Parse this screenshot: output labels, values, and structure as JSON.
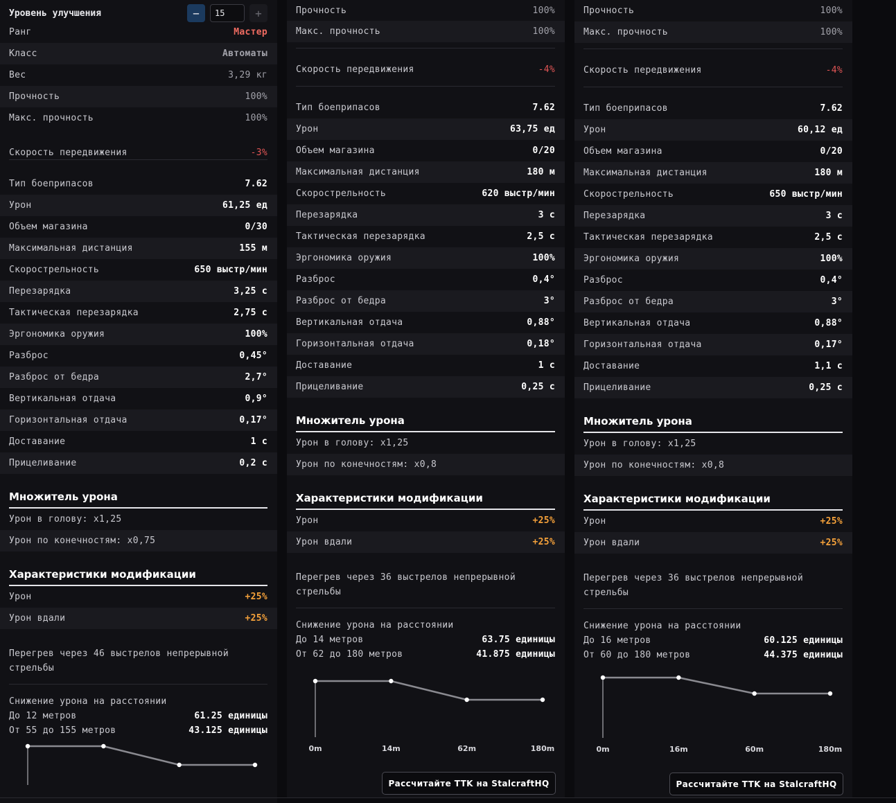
{
  "upgrade": {
    "label": "Уровень улучшения",
    "value": "15",
    "minus": "−",
    "plus": "+"
  },
  "rank": {
    "label": "Ранг",
    "value": "Мастер"
  },
  "klass": {
    "label": "Класс",
    "value": "Автоматы"
  },
  "weight": {
    "label": "Вес",
    "value": "3,29 кг"
  },
  "col1": {
    "durability": {
      "label": "Прочность",
      "value": "100%"
    },
    "max_durability": {
      "label": "Макс. прочность",
      "value": "100%"
    },
    "move_speed": {
      "label": "Скорость передвижения",
      "value": "-3%"
    },
    "stats": [
      {
        "label": "Тип боеприпасов",
        "value": "7.62"
      },
      {
        "label": "Урон",
        "value": "61,25 ед"
      },
      {
        "label": "Объем магазина",
        "value": "0/30"
      },
      {
        "label": "Максимальная дистанция",
        "value": "155 м"
      },
      {
        "label": "Скорострельность",
        "value": "650 выстр/мин"
      },
      {
        "label": "Перезарядка",
        "value": "3,25 с"
      },
      {
        "label": "Тактическая перезарядка",
        "value": "2,75 с"
      },
      {
        "label": "Эргономика оружия",
        "value": "100%"
      },
      {
        "label": "Разброс",
        "value": "0,45°"
      },
      {
        "label": "Разброс от бедра",
        "value": "2,7°"
      },
      {
        "label": "Вертикальная отдача",
        "value": "0,9°"
      },
      {
        "label": "Горизонтальная отдача",
        "value": "0,17°"
      },
      {
        "label": "Доставание",
        "value": "1 с"
      },
      {
        "label": "Прицеливание",
        "value": "0,2 с"
      }
    ],
    "multiplier_title": "Множитель урона",
    "head": "Урон в голову: x1,25",
    "limbs": "Урон по конечностям: x0,75",
    "mod_title": "Характеристики модификации",
    "mod": [
      {
        "label": "Урон",
        "value": "+25%"
      },
      {
        "label": "Урон вдали",
        "value": "+25%"
      }
    ],
    "overheat_1": "Перегрев через 46 выстрелов непрерывной",
    "overheat_2": "стрельбы",
    "falloff_title": "Снижение урона на расстоянии",
    "falloff": [
      {
        "label": "До 12 метров",
        "value": "61.25 единицы"
      },
      {
        "label": "От 55 до 155 метров",
        "value": "43.125 единицы"
      }
    ]
  },
  "col2": {
    "durability": {
      "label": "Прочность",
      "value": "100%"
    },
    "max_durability": {
      "label": "Макс. прочность",
      "value": "100%"
    },
    "move_speed": {
      "label": "Скорость передвижения",
      "value": "-4%"
    },
    "stats": [
      {
        "label": "Тип боеприпасов",
        "value": "7.62"
      },
      {
        "label": "Урон",
        "value": "63,75 ед"
      },
      {
        "label": "Объем магазина",
        "value": "0/20"
      },
      {
        "label": "Максимальная дистанция",
        "value": "180 м"
      },
      {
        "label": "Скорострельность",
        "value": "620 выстр/мин"
      },
      {
        "label": "Перезарядка",
        "value": "3 с"
      },
      {
        "label": "Тактическая перезарядка",
        "value": "2,5 с"
      },
      {
        "label": "Эргономика оружия",
        "value": "100%"
      },
      {
        "label": "Разброс",
        "value": "0,4°"
      },
      {
        "label": "Разброс от бедра",
        "value": "3°"
      },
      {
        "label": "Вертикальная отдача",
        "value": "0,88°"
      },
      {
        "label": "Горизонтальная отдача",
        "value": "0,18°"
      },
      {
        "label": "Доставание",
        "value": "1 с"
      },
      {
        "label": "Прицеливание",
        "value": "0,25 с"
      }
    ],
    "multiplier_title": "Множитель урона",
    "head": "Урон в голову: x1,25",
    "limbs": "Урон по конечностям: x0,8",
    "mod_title": "Характеристики модификации",
    "mod": [
      {
        "label": "Урон",
        "value": "+25%"
      },
      {
        "label": "Урон вдали",
        "value": "+25%"
      }
    ],
    "overheat_1": "Перегрев через 36 выстрелов непрерывной",
    "overheat_2": "стрельбы",
    "falloff_title": "Снижение урона на расстоянии",
    "falloff": [
      {
        "label": "До 14 метров",
        "value": "63.75 единицы"
      },
      {
        "label": "От 62 до 180 метров",
        "value": "41.875 единицы"
      }
    ],
    "ttk_button": "Рассчитайте TTK на StalcraftHQ"
  },
  "col3": {
    "durability": {
      "label": "Прочность",
      "value": "100%"
    },
    "max_durability": {
      "label": "Макс. прочность",
      "value": "100%"
    },
    "move_speed": {
      "label": "Скорость передвижения",
      "value": "-4%"
    },
    "stats": [
      {
        "label": "Тип боеприпасов",
        "value": "7.62"
      },
      {
        "label": "Урон",
        "value": "60,12 ед"
      },
      {
        "label": "Объем магазина",
        "value": "0/20"
      },
      {
        "label": "Максимальная дистанция",
        "value": "180 м"
      },
      {
        "label": "Скорострельность",
        "value": "650 выстр/мин"
      },
      {
        "label": "Перезарядка",
        "value": "3 с"
      },
      {
        "label": "Тактическая перезарядка",
        "value": "2,5 с"
      },
      {
        "label": "Эргономика оружия",
        "value": "100%"
      },
      {
        "label": "Разброс",
        "value": "0,4°"
      },
      {
        "label": "Разброс от бедра",
        "value": "3°"
      },
      {
        "label": "Вертикальная отдача",
        "value": "0,88°"
      },
      {
        "label": "Горизонтальная отдача",
        "value": "0,17°"
      },
      {
        "label": "Доставание",
        "value": "1,1 с"
      },
      {
        "label": "Прицеливание",
        "value": "0,25 с"
      }
    ],
    "multiplier_title": "Множитель урона",
    "head": "Урон в голову: x1,25",
    "limbs": "Урон по конечностям: x0,8",
    "mod_title": "Характеристики модификации",
    "mod": [
      {
        "label": "Урон",
        "value": "+25%"
      },
      {
        "label": "Урон вдали",
        "value": "+25%"
      }
    ],
    "overheat_1": "Перегрев через 36 выстрелов непрерывной",
    "overheat_2": "стрельбы",
    "falloff_title": "Снижение урона на расстоянии",
    "falloff": [
      {
        "label": "До 16 метров",
        "value": "60.125 единицы"
      },
      {
        "label": "От 60 до 180 метров",
        "value": "44.375 единицы"
      }
    ],
    "ttk_button": "Рассчитайте TTK на StalcraftHQ"
  },
  "chart_data": [
    {
      "type": "line",
      "title": "Снижение урона на расстоянии",
      "x": [
        0,
        12,
        55,
        155
      ],
      "values": [
        61.25,
        61.25,
        43.125,
        43.125
      ],
      "tick_labels": []
    },
    {
      "type": "line",
      "title": "Снижение урона на расстоянии",
      "x": [
        0,
        14,
        62,
        180
      ],
      "values": [
        63.75,
        63.75,
        41.875,
        41.875
      ],
      "tick_labels": [
        "0m",
        "14m",
        "62m",
        "180m"
      ]
    },
    {
      "type": "line",
      "title": "Снижение урона на расстоянии",
      "x": [
        0,
        16,
        60,
        180
      ],
      "values": [
        60.125,
        60.125,
        44.375,
        44.375
      ],
      "tick_labels": [
        "0m",
        "16m",
        "60m",
        "180m"
      ]
    }
  ]
}
